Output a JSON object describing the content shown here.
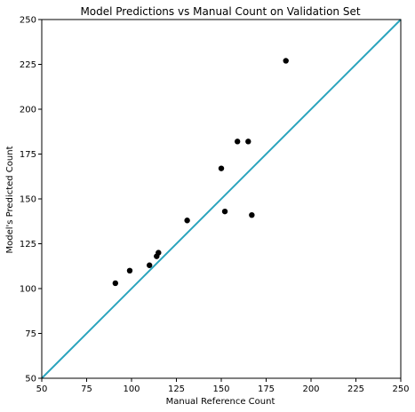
{
  "chart_data": {
    "type": "scatter",
    "title": "Model Predictions vs Manual Count on Validation Set",
    "xlabel": "Manual Reference Count",
    "ylabel": "Model's Predicted Count",
    "xlim": [
      50,
      250
    ],
    "ylim": [
      50,
      250
    ],
    "xticks": [
      "50",
      "75",
      "100",
      "125",
      "150",
      "175",
      "200",
      "225",
      "250"
    ],
    "yticks": [
      "50",
      "75",
      "100",
      "125",
      "150",
      "175",
      "200",
      "225",
      "250"
    ],
    "grid": false,
    "legend": "none",
    "points": [
      {
        "x": 91,
        "y": 103
      },
      {
        "x": 99,
        "y": 110
      },
      {
        "x": 110,
        "y": 113
      },
      {
        "x": 114,
        "y": 118
      },
      {
        "x": 115,
        "y": 120
      },
      {
        "x": 131,
        "y": 138
      },
      {
        "x": 150,
        "y": 167
      },
      {
        "x": 152,
        "y": 143
      },
      {
        "x": 159,
        "y": 182
      },
      {
        "x": 165,
        "y": 182
      },
      {
        "x": 167,
        "y": 141
      },
      {
        "x": 186,
        "y": 227
      }
    ],
    "reference_line": {
      "x": [
        50,
        250
      ],
      "y": [
        50,
        250
      ]
    },
    "colors": {
      "points": "#000000",
      "reference_line": "#2ba4bd",
      "axes": "#000000"
    }
  }
}
